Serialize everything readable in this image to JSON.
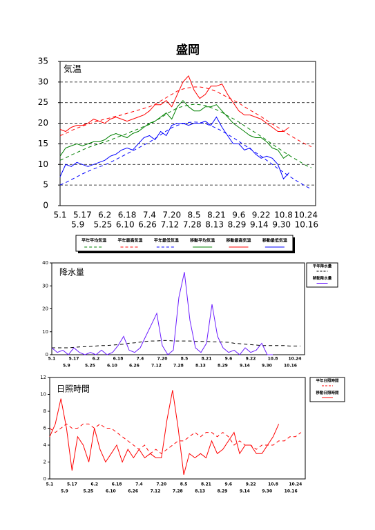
{
  "chart_data": [
    {
      "type": "line",
      "title": "盛岡",
      "label": "気温",
      "categories": [
        "5.1",
        null,
        "5.9",
        null,
        "5.17",
        null,
        "5.25",
        null,
        "6.2",
        null,
        "6.10",
        null,
        "6.18",
        null,
        "6.26",
        null,
        "7.4",
        null,
        "7.12",
        null,
        "7.20",
        null,
        "7.28",
        null,
        "8.5",
        null,
        "8.13",
        null,
        "8.21",
        null,
        "8.29",
        null,
        "9.6",
        null,
        "9.14",
        null,
        "9.22",
        null,
        "9.30",
        null,
        "10.8",
        null,
        "10.16",
        null,
        "10.24",
        null
      ],
      "ylim": [
        0,
        35
      ],
      "yticks": [
        0,
        5,
        10,
        15,
        20,
        25,
        30,
        35
      ],
      "grid": true,
      "legend": "bottom",
      "series": [
        {
          "name": "平年平均気温",
          "color": "#008000",
          "dash": true,
          "values": [
            11.0,
            11.6,
            12.3,
            12.9,
            13.5,
            14.1,
            14.6,
            15.0,
            15.5,
            15.9,
            16.5,
            17.0,
            17.5,
            18.1,
            18.6,
            19.2,
            19.7,
            20.5,
            21.3,
            22.2,
            23.0,
            23.7,
            24.1,
            24.4,
            24.6,
            24.5,
            24.3,
            23.8,
            23.3,
            22.6,
            21.8,
            21.1,
            20.3,
            19.4,
            18.5,
            17.7,
            16.8,
            15.9,
            14.9,
            14.0,
            13.1,
            12.2,
            11.4,
            10.6,
            9.8,
            9.2
          ]
        },
        {
          "name": "平年最高気温",
          "color": "#ff0000",
          "dash": true,
          "values": [
            17.0,
            17.5,
            18.2,
            18.8,
            19.3,
            19.8,
            20.2,
            20.6,
            21.0,
            21.3,
            21.7,
            22.0,
            22.4,
            22.8,
            23.2,
            23.6,
            24.0,
            24.6,
            25.4,
            26.2,
            27.0,
            27.8,
            28.3,
            28.6,
            28.8,
            28.8,
            28.6,
            28.2,
            27.7,
            27.0,
            26.3,
            25.6,
            24.9,
            24.0,
            23.2,
            22.4,
            21.6,
            20.7,
            19.8,
            19.0,
            18.1,
            17.2,
            16.4,
            15.6,
            14.9,
            14.3
          ]
        },
        {
          "name": "平年最低気温",
          "color": "#0000ff",
          "dash": true,
          "values": [
            5.0,
            5.6,
            6.3,
            7.0,
            7.7,
            8.3,
            8.9,
            9.4,
            9.9,
            10.5,
            11.2,
            11.9,
            12.6,
            13.3,
            14.0,
            14.7,
            15.4,
            16.3,
            17.2,
            18.1,
            18.9,
            19.5,
            19.9,
            20.2,
            20.3,
            20.2,
            19.9,
            19.4,
            18.8,
            18.1,
            17.3,
            16.5,
            15.6,
            14.7,
            13.8,
            12.9,
            12.0,
            11.0,
            10.0,
            9.0,
            8.1,
            7.2,
            6.3,
            5.5,
            4.7,
            4.0
          ]
        },
        {
          "name": "移動平均気温",
          "color": "#008000",
          "dash": false,
          "values": [
            12,
            14,
            14.5,
            15,
            14.5,
            15,
            15.5,
            15.5,
            16,
            17,
            17.5,
            17,
            16.5,
            17.5,
            18,
            19,
            20,
            20.5,
            21.5,
            22.5,
            21,
            24,
            25.5,
            24,
            23,
            23,
            24,
            24,
            24.5,
            23,
            21.5,
            20,
            19,
            18,
            17,
            16.5,
            16.5,
            15.5,
            14,
            13.5,
            11.5,
            12.5,
            null,
            null,
            null,
            null
          ]
        },
        {
          "name": "移動最高気温",
          "color": "#ff0000",
          "dash": false,
          "values": [
            18.5,
            18,
            19,
            19.5,
            19.5,
            20,
            21,
            20.5,
            20,
            21,
            21.5,
            21,
            20.5,
            21,
            21.5,
            22,
            23,
            24.5,
            24.5,
            25.5,
            24,
            27,
            30,
            31.5,
            28,
            26,
            27,
            29,
            29,
            29.5,
            27,
            25,
            23,
            22,
            22,
            21.5,
            21,
            20,
            19,
            18,
            18,
            19,
            null,
            null,
            null,
            null
          ]
        },
        {
          "name": "移動最低気温",
          "color": "#0000ff",
          "dash": false,
          "values": [
            7,
            10,
            9.5,
            10.5,
            10,
            9.5,
            10,
            10.5,
            11,
            12,
            12.5,
            13.5,
            14,
            13.5,
            15,
            16.5,
            17,
            16,
            18,
            17,
            19.5,
            20,
            20,
            19.5,
            20,
            20,
            20.5,
            19.5,
            21.5,
            19,
            17,
            15,
            15,
            13.5,
            14,
            12.5,
            11.5,
            12,
            11.5,
            10,
            6.5,
            8,
            null,
            null,
            null,
            null
          ]
        }
      ]
    },
    {
      "type": "line",
      "label": "降水量",
      "categories": [
        "5.1",
        null,
        "5.9",
        null,
        "5.17",
        null,
        "5.25",
        null,
        "6.2",
        null,
        "6.10",
        null,
        "6.18",
        null,
        "6.26",
        null,
        "7.4",
        null,
        "7.12",
        null,
        "7.20",
        null,
        "7.28",
        null,
        "8.5",
        null,
        "8.13",
        null,
        "8.21",
        null,
        "8.29",
        null,
        "9.6",
        null,
        "9.14",
        null,
        "9.22",
        null,
        "9.30",
        null,
        "10.8",
        null,
        "10.16",
        null,
        "10.24",
        null
      ],
      "ylim": [
        0,
        40
      ],
      "yticks": [
        0,
        10,
        20,
        30,
        40
      ],
      "grid": false,
      "legend": "right",
      "series": [
        {
          "name": "平年降水量",
          "color": "#000000",
          "dash": true,
          "values": [
            3,
            3,
            3,
            3,
            3.2,
            3.4,
            3.5,
            3.6,
            3.8,
            4,
            4,
            4.2,
            4.4,
            4.6,
            5,
            5.2,
            5.5,
            5.8,
            6,
            6,
            6.2,
            6.2,
            6,
            6,
            6,
            6,
            5.8,
            5.8,
            5.8,
            5.6,
            5.6,
            5.5,
            5.4,
            5,
            4.8,
            4.6,
            4.4,
            4.2,
            4,
            4,
            4,
            4,
            4,
            3.8,
            3.8,
            3.8
          ]
        },
        {
          "name": "移動降水量",
          "color": "#6a1bff",
          "dash": false,
          "values": [
            3,
            1,
            2,
            0,
            3,
            1,
            0,
            1,
            0,
            2,
            0,
            1,
            4,
            8,
            2,
            1,
            3,
            8,
            13,
            18,
            4,
            0,
            2,
            25,
            36,
            15,
            3,
            1,
            5,
            22,
            8,
            3,
            1,
            2,
            0,
            3,
            1,
            2,
            5,
            0,
            0,
            null,
            null,
            null,
            null,
            null
          ]
        }
      ]
    },
    {
      "type": "line",
      "label": "日照時間",
      "categories": [
        "5.1",
        null,
        "5.9",
        null,
        "5.17",
        null,
        "5.25",
        null,
        "6.2",
        null,
        "6.10",
        null,
        "6.18",
        null,
        "6.26",
        null,
        "7.4",
        null,
        "7.12",
        null,
        "7.20",
        null,
        "7.28",
        null,
        "8.5",
        null,
        "8.13",
        null,
        "8.21",
        null,
        "8.29",
        null,
        "9.6",
        null,
        "9.14",
        null,
        "9.22",
        null,
        "9.30",
        null,
        "10.8",
        null,
        "10.16",
        null,
        "10.24",
        null
      ],
      "ylim": [
        0,
        12
      ],
      "yticks": [
        0,
        2,
        4,
        6,
        8,
        10,
        12
      ],
      "grid": false,
      "legend": "right",
      "series": [
        {
          "name": "平年日照時間",
          "color": "#ff0000",
          "dash": true,
          "values": [
            6,
            5.5,
            6,
            6.5,
            6,
            6,
            6.5,
            6.5,
            6,
            6.5,
            6,
            6,
            5.5,
            5,
            4.5,
            4,
            3.5,
            4,
            3,
            3.5,
            3,
            3.5,
            4,
            4.5,
            4.5,
            5,
            5.5,
            5,
            5.5,
            5.5,
            5,
            5.5,
            5,
            4,
            4.5,
            4,
            4,
            3.5,
            4,
            4,
            4,
            4.5,
            4.5,
            5,
            5,
            5.5
          ]
        },
        {
          "name": "移動日照時間",
          "color": "#ff0000",
          "dash": false,
          "values": [
            5,
            6.5,
            9.5,
            6,
            1,
            5,
            4,
            2,
            6,
            3.5,
            2,
            3,
            4,
            2,
            3.5,
            2.5,
            3.5,
            2.5,
            3,
            2.5,
            2.5,
            7,
            10.5,
            6,
            0.5,
            3,
            2.5,
            3,
            2.5,
            4.5,
            3,
            3.5,
            4.5,
            5.5,
            3,
            4,
            4,
            3,
            3,
            4,
            5,
            6.5,
            null,
            null,
            null,
            null
          ]
        }
      ]
    }
  ]
}
